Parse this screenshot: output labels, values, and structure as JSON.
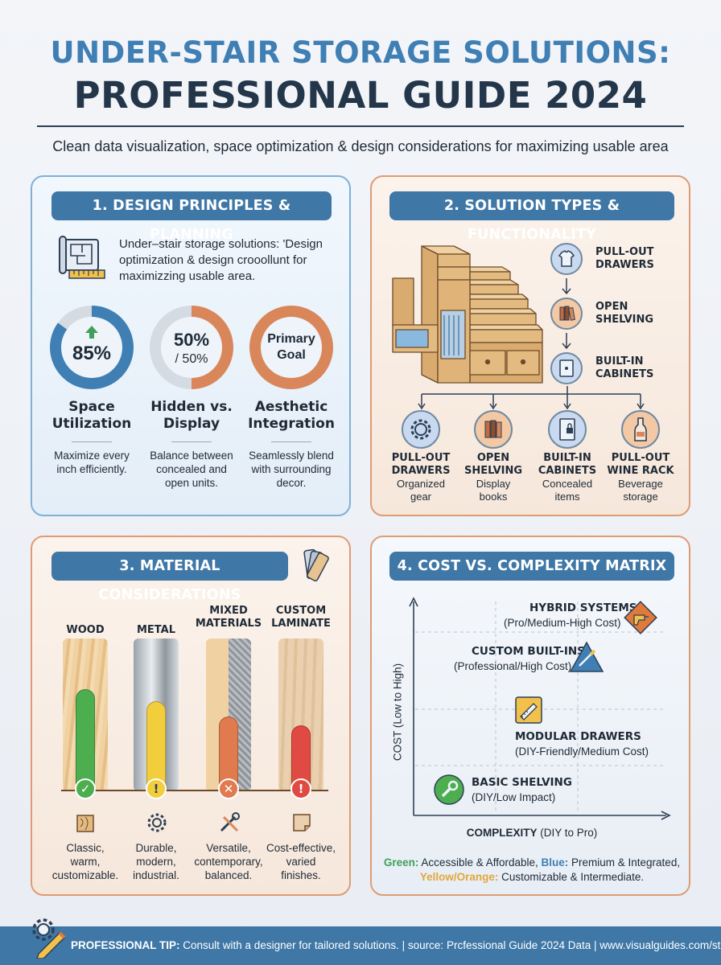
{
  "header": {
    "title_line1": "UNDER-STAIR STORAGE SOLUTIONS:",
    "title_line2": "PROFESSIONAL GUIDE 2024",
    "subtitle": "Clean data visualization, space optimization & design considerations for maximizing usable area"
  },
  "panel1": {
    "heading": "1. DESIGN PRINCIPLES & PLANNING",
    "intro": "Under–stair storage solutions: 'Design optimization &  design crooollunt for maximizzing usable area.",
    "stats": [
      {
        "value": "85%",
        "fraction": 0.85,
        "label_line1": "Space",
        "label_line2": "Utilization",
        "desc_line1": "Maximize every",
        "desc_line2": "inch efficiently.",
        "desc_line3": "",
        "color": "#3f7fb4"
      },
      {
        "value": "50%",
        "sub": "/ 50%",
        "fraction": 0.5,
        "label_line1": "Hidden vs.",
        "label_line2": "Display",
        "desc_line1": "Balance between",
        "desc_line2": "concealed and",
        "desc_line3": "open units.",
        "color": "#d9875a"
      },
      {
        "value": "Primary",
        "sub": "Goal",
        "fraction": 1.0,
        "label_line1": "Aesthetic",
        "label_line2": "Integration",
        "desc_line1": "Seamlessly blend",
        "desc_line2": "with surrounding",
        "desc_line3": "decor.",
        "color": "#d9875a"
      }
    ]
  },
  "panel2": {
    "heading": "2. SOLUTION TYPES & FUNCTIONALITY",
    "flow": [
      {
        "line1": "PULL-OUT",
        "line2": "DRAWERS",
        "icon": "shirt-icon"
      },
      {
        "line1": "OPEN",
        "line2": "SHELVING",
        "icon": "books-icon"
      },
      {
        "line1": "BUILT-IN",
        "line2": "CABINETS",
        "icon": "cabinet-icon"
      }
    ],
    "branches": [
      {
        "line1": "PULL-OUT",
        "line2": "DRAWERS",
        "desc1": "Organized",
        "desc2": "gear",
        "icon": "gear-icon"
      },
      {
        "line1": "OPEN",
        "line2": "SHELVING",
        "desc1": "Display",
        "desc2": "books",
        "icon": "books-icon"
      },
      {
        "line1": "BUILT-IN",
        "line2": "CABINETS",
        "desc1": "Concealed",
        "desc2": "items",
        "icon": "cabinet-lock-icon"
      },
      {
        "line1": "PULL-OUT",
        "line2": "WINE RACK",
        "desc1": "Beverage",
        "desc2": "storage",
        "icon": "wine-bottle-icon"
      }
    ]
  },
  "panel3": {
    "heading": "3. MATERIAL CONSIDERATIONS",
    "materials": [
      {
        "name_line1": "",
        "name_line2": "WOOD",
        "level": 0.66,
        "status": "check",
        "color": "#4cae4f",
        "desc1": "Classic,",
        "desc2": "warm,",
        "desc3": "customizable.",
        "icon": "wood-plank-icon"
      },
      {
        "name_line1": "",
        "name_line2": "METAL",
        "level": 0.58,
        "status": "warning",
        "color": "#f2cd3c",
        "desc1": "Durable,",
        "desc2": "modern,",
        "desc3": "industrial.",
        "icon": "gear-icon"
      },
      {
        "name_line1": "MIXED",
        "name_line2": "MATERIALS",
        "level": 0.48,
        "status": "cross",
        "color": "#e07a4f",
        "desc1": "Versatile,",
        "desc2": "contemporary,",
        "desc3": "balanced.",
        "icon": "tools-icon"
      },
      {
        "name_line1": "CUSTOM",
        "name_line2": "LAMINATE",
        "level": 0.42,
        "status": "warning",
        "color": "#e04a42",
        "desc1": "Cost-effective,",
        "desc2": "varied",
        "desc3": "finishes.",
        "icon": "laminate-sheet-icon"
      }
    ]
  },
  "panel4": {
    "heading": "4. COST VS. COMPLEXITY MATRIX",
    "y_axis": "COST (Low to High)",
    "x_axis_bold": "COMPLEXITY",
    "x_axis_rest": " (DIY to Pro)",
    "items": [
      {
        "title": "HYBRID SYSTEMS",
        "sub": "(Pro/Medium-High Cost)",
        "icon": "drill-icon"
      },
      {
        "title": "CUSTOM BUILT-INS",
        "sub": "(Professional/High Cost)",
        "icon": "screwdriver-icon"
      },
      {
        "title": "MODULAR DRAWERS",
        "sub": "(DIY-Friendly/Medium Cost)",
        "icon": "saw-icon"
      },
      {
        "title": "BASIC SHELVING",
        "sub": "(DIY/Low Impact)",
        "icon": "wrench-icon"
      }
    ],
    "legend": {
      "green_label": "Green:",
      "green_text": " Accessible & Affordable, ",
      "blue_label": "Blue:",
      "blue_text": " Premium & Integrated,",
      "yellow_label": "Yellow/Orange:",
      "yellow_text": " Customizable & Intermediate."
    }
  },
  "footer": {
    "tip_label": "PROFESSIONAL TIP:",
    "tip_text": " Consult with a designer for tailored solutions. | source: Prcfessional Guide 2024 Data | www.visualguides.com/storage"
  },
  "colors": {
    "primary_blue": "#3f77a6",
    "accent_orange": "#d9875a",
    "dark_navy": "#24364a"
  }
}
